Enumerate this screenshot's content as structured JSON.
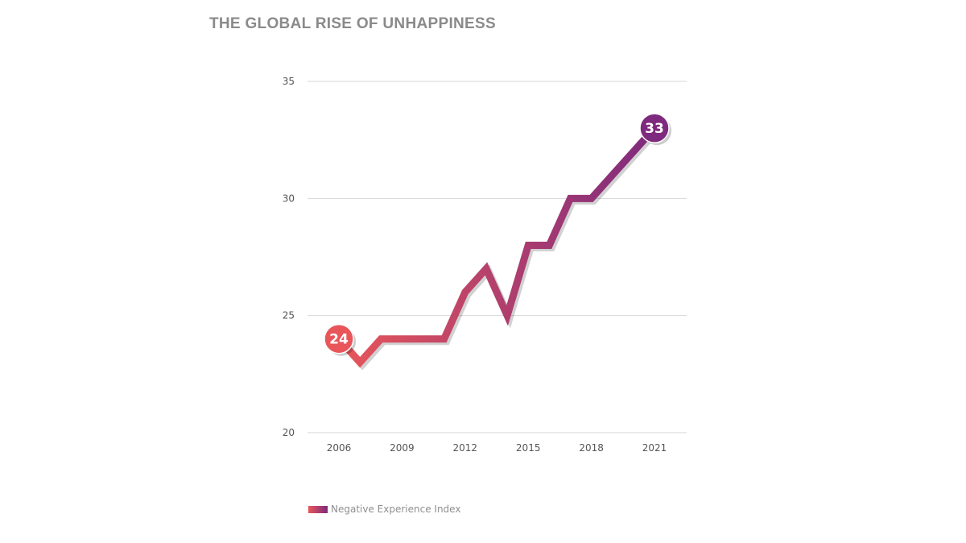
{
  "chart_data": {
    "type": "line",
    "title": "THE GLOBAL RISE OF UNHAPPINESS",
    "xlabel": "",
    "ylabel": "",
    "x": [
      2006,
      2007,
      2008,
      2009,
      2010,
      2011,
      2012,
      2013,
      2014,
      2015,
      2016,
      2017,
      2018,
      2019,
      2020,
      2021
    ],
    "series": [
      {
        "name": "Negative Experience Index",
        "values": [
          24,
          23,
          24,
          24,
          24,
          24,
          26,
          27,
          25,
          28,
          28,
          30,
          30,
          31,
          32,
          33
        ]
      }
    ],
    "xticks": [
      "2006",
      "2009",
      "2012",
      "2015",
      "2018",
      "2021"
    ],
    "yticks": [
      "20",
      "25",
      "30",
      "35"
    ],
    "ylim": [
      20,
      35
    ],
    "xlim": [
      2006,
      2021
    ],
    "grid": "horizontal",
    "legend": "bottom-left",
    "endpoint_labels": {
      "start": "24",
      "end": "33"
    },
    "colors": {
      "start": "#e8565a",
      "end": "#7e2a7e"
    }
  }
}
